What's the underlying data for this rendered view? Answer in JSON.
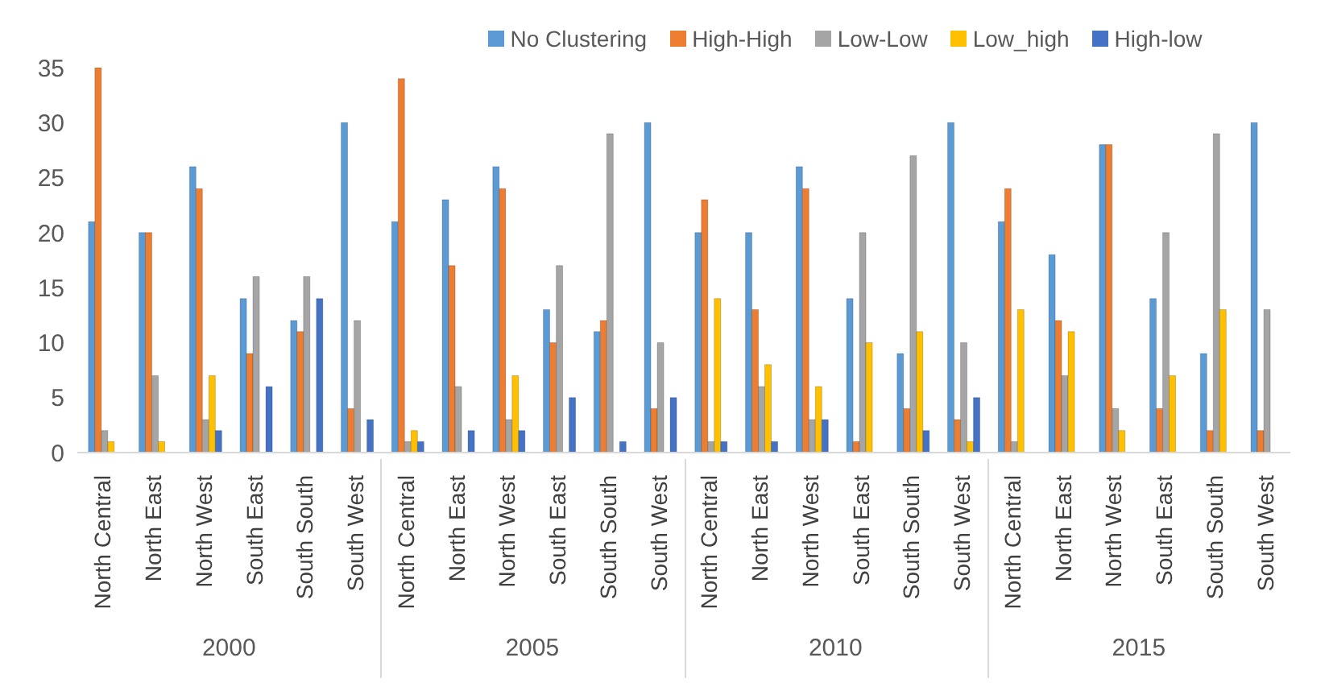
{
  "chart_data": {
    "type": "bar",
    "categories": [
      "North Central",
      "North East",
      "North West",
      "South East",
      "South South",
      "South West",
      "North Central",
      "North East",
      "North West",
      "South East",
      "South South",
      "South West",
      "North Central",
      "North East",
      "North West",
      "South East",
      "South South",
      "South West",
      "North Central",
      "North East",
      "North West",
      "South East",
      "South South",
      "South West"
    ],
    "series": [
      {
        "name": "No Clustering",
        "color": "#5b9bd5",
        "values": [
          21,
          20,
          26,
          14,
          12,
          30,
          21,
          23,
          26,
          13,
          11,
          30,
          20,
          20,
          26,
          14,
          9,
          30,
          21,
          18,
          28,
          14,
          9,
          30
        ]
      },
      {
        "name": "High-High",
        "color": "#ed7d31",
        "values": [
          35,
          20,
          24,
          9,
          11,
          4,
          34,
          17,
          24,
          10,
          12,
          4,
          23,
          13,
          24,
          1,
          4,
          3,
          24,
          12,
          28,
          4,
          2,
          2
        ]
      },
      {
        "name": "Low-Low",
        "color": "#a5a5a5",
        "values": [
          2,
          7,
          3,
          16,
          16,
          12,
          1,
          6,
          3,
          17,
          29,
          10,
          1,
          6,
          3,
          20,
          27,
          10,
          1,
          7,
          4,
          20,
          29,
          13
        ]
      },
      {
        "name": "Low_high",
        "color": "#ffc000",
        "values": [
          1,
          1,
          7,
          0,
          0,
          0,
          2,
          0,
          7,
          0,
          0,
          0,
          14,
          8,
          6,
          10,
          11,
          1,
          13,
          11,
          2,
          7,
          13,
          null
        ]
      },
      {
        "name": "High-low",
        "color": "#4472c4",
        "values": [
          0,
          0,
          2,
          6,
          14,
          3,
          1,
          2,
          2,
          5,
          1,
          5,
          1,
          1,
          3,
          0,
          2,
          5,
          0,
          0,
          0,
          0,
          0,
          null
        ]
      }
    ],
    "annotations": [
      "2000",
      "2005",
      "2010",
      "2015"
    ],
    "ylim": [
      0,
      35
    ],
    "yticks": [
      0,
      5,
      10,
      15,
      20,
      25,
      30,
      35
    ],
    "legend": "top",
    "grid": false
  }
}
